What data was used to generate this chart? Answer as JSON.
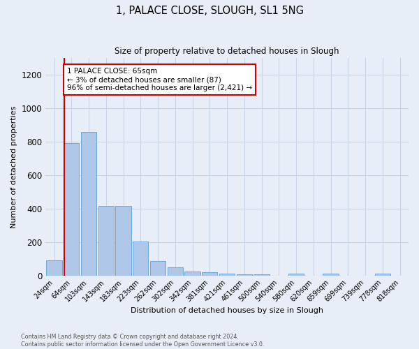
{
  "title1": "1, PALACE CLOSE, SLOUGH, SL1 5NG",
  "title2": "Size of property relative to detached houses in Slough",
  "xlabel": "Distribution of detached houses by size in Slough",
  "ylabel": "Number of detached properties",
  "categories": [
    "24sqm",
    "64sqm",
    "103sqm",
    "143sqm",
    "183sqm",
    "223sqm",
    "262sqm",
    "302sqm",
    "342sqm",
    "381sqm",
    "421sqm",
    "461sqm",
    "500sqm",
    "540sqm",
    "580sqm",
    "620sqm",
    "659sqm",
    "699sqm",
    "739sqm",
    "778sqm",
    "818sqm"
  ],
  "values": [
    90,
    790,
    860,
    415,
    415,
    205,
    85,
    50,
    25,
    20,
    10,
    5,
    5,
    0,
    10,
    0,
    10,
    0,
    0,
    10,
    0
  ],
  "bar_color": "#aec6e8",
  "bar_edge_color": "#5a9fd4",
  "annotation_box_text": "1 PALACE CLOSE: 65sqm\n← 3% of detached houses are smaller (87)\n96% of semi-detached houses are larger (2,421) →",
  "annotation_box_color": "#ffffff",
  "annotation_box_edge_color": "#cc0000",
  "vline_color": "#cc0000",
  "vline_x": 0.6,
  "ylim": [
    0,
    1300
  ],
  "yticks": [
    0,
    200,
    400,
    600,
    800,
    1000,
    1200
  ],
  "grid_color": "#c8d4e8",
  "bg_color": "#e8eef8",
  "footer1": "Contains HM Land Registry data © Crown copyright and database right 2024.",
  "footer2": "Contains public sector information licensed under the Open Government Licence v3.0."
}
